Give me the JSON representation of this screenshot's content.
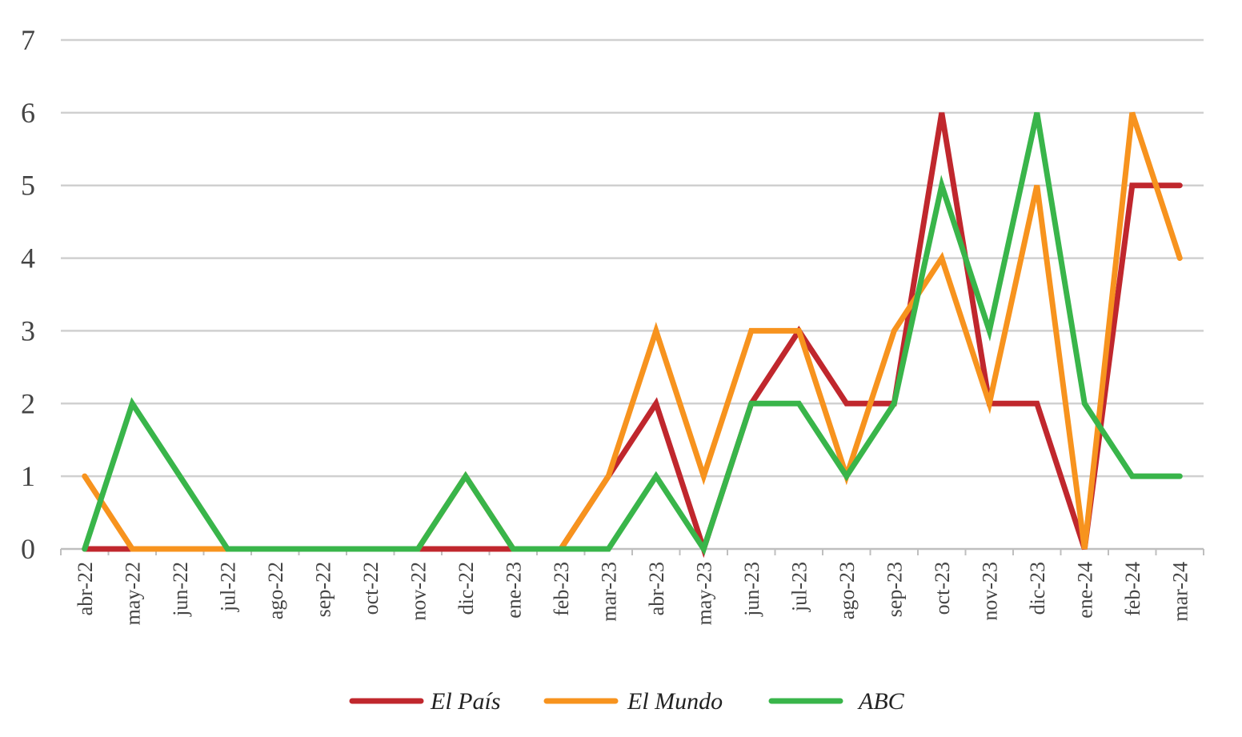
{
  "chart_data": {
    "type": "line",
    "categories": [
      "abr-22",
      "may-22",
      "jun-22",
      "jul-22",
      "ago-22",
      "sep-22",
      "oct-22",
      "nov-22",
      "dic-22",
      "ene-23",
      "feb-23",
      "mar-23",
      "abr-23",
      "may-23",
      "jun-23",
      "jul-23",
      "ago-23",
      "sep-23",
      "oct-23",
      "nov-23",
      "dic-23",
      "ene-24",
      "feb-24",
      "mar-24"
    ],
    "yticks": [
      "0",
      "1",
      "2",
      "3",
      "4",
      "5",
      "6",
      "7"
    ],
    "ylim": [
      0,
      7
    ],
    "grid": true,
    "legend_position": "bottom",
    "series": [
      {
        "name": "El País",
        "color": "#c0272d",
        "values": [
          0,
          0,
          0,
          0,
          0,
          0,
          0,
          0,
          0,
          0,
          0,
          1,
          2,
          0,
          2,
          3,
          2,
          2,
          6,
          2,
          2,
          0,
          5,
          5
        ]
      },
      {
        "name": "El Mundo",
        "color": "#f7931e",
        "values": [
          1,
          0,
          0,
          0,
          0,
          0,
          0,
          0,
          1,
          0,
          0,
          1,
          3,
          1,
          3,
          3,
          1,
          3,
          4,
          2,
          5,
          0,
          6,
          4
        ]
      },
      {
        "name": "ABC",
        "color": "#39b54a",
        "values": [
          0,
          2,
          1,
          0,
          0,
          0,
          0,
          0,
          1,
          0,
          0,
          0,
          1,
          0,
          2,
          2,
          1,
          2,
          5,
          3,
          6,
          2,
          1,
          1
        ]
      }
    ]
  }
}
